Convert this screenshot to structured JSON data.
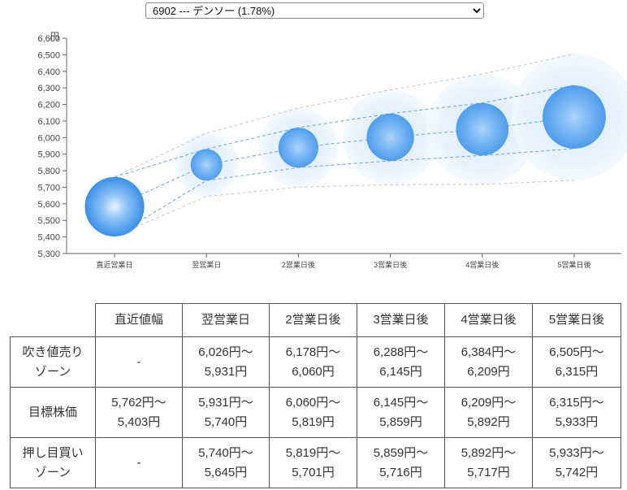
{
  "selector": {
    "selected": "6902 --- デンソー (1.78%)"
  },
  "chart_data": {
    "type": "scatter",
    "y_unit_label": "円",
    "categories": [
      "直近営業日",
      "翌営業日",
      "2営業日後",
      "3営業日後",
      "4営業日後",
      "5営業日後"
    ],
    "ylim": [
      5300,
      6600
    ],
    "y_ticks": [
      5300,
      5400,
      5500,
      5600,
      5700,
      5800,
      5900,
      6000,
      6100,
      6200,
      6300,
      6400,
      6500,
      6600
    ],
    "y_tick_labels": [
      "5,300",
      "5,400",
      "5,500",
      "5,600",
      "5,700",
      "5,800",
      "5,900",
      "6,000",
      "6,100",
      "6,200",
      "6,300",
      "6,400",
      "6,500",
      "6,600"
    ],
    "center": [
      5583,
      5836,
      5940,
      6002,
      6051,
      6124
    ],
    "target_upper": [
      5762,
      5931,
      6060,
      6145,
      6209,
      6315
    ],
    "target_lower": [
      5403,
      5740,
      5819,
      5859,
      5892,
      5933
    ],
    "outer_upper": [
      5762,
      6026,
      6178,
      6288,
      6384,
      6505
    ],
    "outer_lower": [
      5403,
      5645,
      5701,
      5716,
      5717,
      5742
    ],
    "grid": false,
    "colors": {
      "bubble": "#4a9ff0",
      "outer_halo": "#dbeafb",
      "line": "#6fa3d8",
      "outer_line": "#c9c9c9"
    }
  },
  "table": {
    "headers": [
      "",
      "直近値幅",
      "翌営業日",
      "2営業日後",
      "3営業日後",
      "4営業日後",
      "5営業日後"
    ],
    "rows": [
      {
        "label": [
          "吹き値売り",
          "ゾーン"
        ],
        "cells": [
          [
            "-"
          ],
          [
            "6,026円〜",
            "5,931円"
          ],
          [
            "6,178円〜",
            "6,060円"
          ],
          [
            "6,288円〜",
            "6,145円"
          ],
          [
            "6,384円〜",
            "6,209円"
          ],
          [
            "6,505円〜",
            "6,315円"
          ]
        ]
      },
      {
        "label": [
          "目標株価"
        ],
        "cells": [
          [
            "5,762円〜",
            "5,403円"
          ],
          [
            "5,931円〜",
            "5,740円"
          ],
          [
            "6,060円〜",
            "5,819円"
          ],
          [
            "6,145円〜",
            "5,859円"
          ],
          [
            "6,209円〜",
            "5,892円"
          ],
          [
            "6,315円〜",
            "5,933円"
          ]
        ]
      },
      {
        "label": [
          "押し目買い",
          "ゾーン"
        ],
        "cells": [
          [
            "-"
          ],
          [
            "5,740円〜",
            "5,645円"
          ],
          [
            "5,819円〜",
            "5,701円"
          ],
          [
            "5,859円〜",
            "5,716円"
          ],
          [
            "5,892円〜",
            "5,717円"
          ],
          [
            "5,933円〜",
            "5,742円"
          ]
        ]
      }
    ]
  }
}
